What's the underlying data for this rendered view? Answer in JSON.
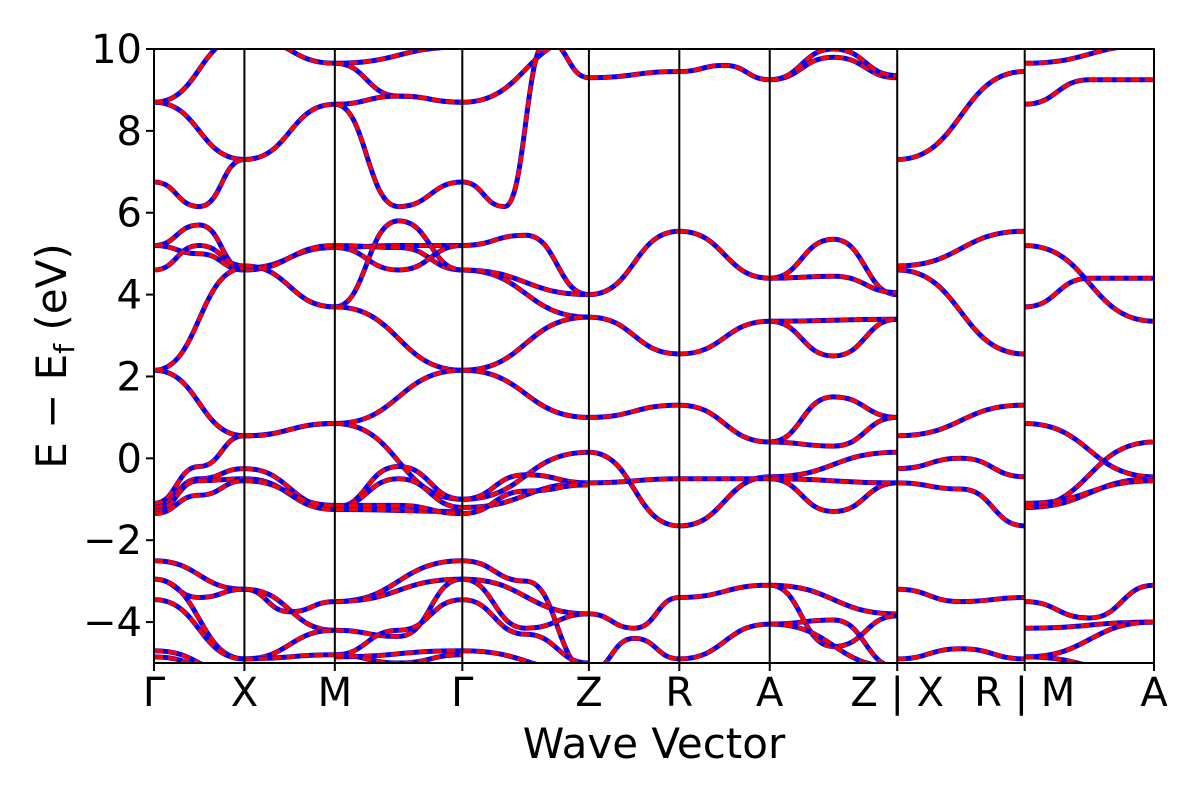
{
  "chart_data": {
    "type": "line",
    "xlabel": "Wave Vector",
    "ylabel": "E − E_f (eV)",
    "ylabel_main": "E − E",
    "ylabel_sub": "f",
    "ylabel_unit": " (eV)",
    "ylim": [
      -5,
      10
    ],
    "yticks": [
      -4,
      -2,
      0,
      2,
      4,
      6,
      8,
      10
    ],
    "ytick_labels": [
      "−4",
      "−2",
      "0",
      "2",
      "4",
      "6",
      "8",
      "10"
    ],
    "xlim": [
      0,
      11.06
    ],
    "grid": false,
    "kpath_ticks": [
      {
        "pos": 0.0,
        "label": "Γ"
      },
      {
        "pos": 1.0,
        "label": "X"
      },
      {
        "pos": 2.0,
        "label": "M"
      },
      {
        "pos": 3.41,
        "label": "Γ"
      },
      {
        "pos": 4.81,
        "label": "Z"
      },
      {
        "pos": 5.81,
        "label": "R"
      },
      {
        "pos": 6.81,
        "label": "A"
      },
      {
        "pos": 8.22,
        "label": "Z | X"
      },
      {
        "pos": 9.63,
        "label": "R | M"
      },
      {
        "pos": 11.06,
        "label": "A"
      }
    ],
    "colors": {
      "primary": "#0000ff",
      "secondary": "#ff0000",
      "kpath_lines": "#000000"
    },
    "segments": [
      {
        "x": [
          0,
          1
        ],
        "bands": [
          [
            8.7,
            7.3
          ],
          [
            8.7,
            10.3
          ],
          [
            6.75,
            6.15,
            7.3
          ],
          [
            5.2,
            5.0,
            4.6
          ],
          [
            5.2,
            5.7,
            4.6
          ],
          [
            4.6,
            5.2,
            4.7
          ],
          [
            2.15,
            0.55
          ],
          [
            2.15,
            4.65
          ],
          [
            -1.1,
            -0.2,
            0.55
          ],
          [
            -1.2,
            -0.5,
            -0.25
          ],
          [
            -1.3,
            -0.55,
            -0.5
          ],
          [
            -1.35,
            -0.9,
            -0.55
          ],
          [
            -2.5,
            -3.2
          ],
          [
            -2.95,
            -3.4,
            -3.2
          ],
          [
            -2.95,
            -4.9
          ],
          [
            -3.45,
            -4.9
          ],
          [
            -4.7,
            -5.3
          ],
          [
            -4.85,
            -5.4
          ]
        ]
      },
      {
        "x": [
          1,
          2
        ],
        "bands": [
          [
            7.3,
            8.65
          ],
          [
            10.3,
            9.65
          ],
          [
            4.65,
            5.15
          ],
          [
            4.6,
            5.2
          ],
          [
            4.7,
            3.7
          ],
          [
            0.55,
            0.85
          ],
          [
            0.55,
            0.85
          ],
          [
            -0.25,
            -1.2
          ],
          [
            -0.5,
            -1.25
          ],
          [
            -0.55,
            -1.15
          ],
          [
            -3.2,
            -3.75,
            -3.5
          ],
          [
            -3.2,
            -4.2
          ],
          [
            -4.9,
            -4.2
          ],
          [
            -4.9,
            -4.8
          ]
        ]
      },
      {
        "x": [
          2,
          3.41
        ],
        "bands": [
          [
            9.65,
            10.05
          ],
          [
            9.65,
            8.85,
            8.7
          ],
          [
            8.65,
            8.85,
            8.7
          ],
          [
            8.65,
            6.15,
            6.75
          ],
          [
            5.15,
            5.2,
            5.2
          ],
          [
            5.2,
            5.15,
            4.6
          ],
          [
            5.15,
            4.6,
            5.2
          ],
          [
            3.7,
            5.8,
            4.6
          ],
          [
            3.7,
            2.15
          ],
          [
            0.85,
            2.15
          ],
          [
            0.85,
            -1.0
          ],
          [
            -1.2,
            -0.2,
            -1.0
          ],
          [
            -1.2,
            -0.5,
            -1.2
          ],
          [
            -1.25,
            -1.3
          ],
          [
            -1.15,
            -1.15,
            -1.35
          ],
          [
            -3.5,
            -2.5
          ],
          [
            -3.5,
            -2.95
          ],
          [
            -4.2,
            -4.35,
            -2.95
          ],
          [
            -4.8,
            -4.2,
            -3.45
          ],
          [
            -4.85,
            -4.7
          ],
          [
            -4.8,
            -5.0,
            -4.8
          ]
        ]
      },
      {
        "x": [
          3.41,
          4.81
        ],
        "bands": [
          [
            8.7,
            10.3
          ],
          [
            6.75,
            6.15,
            10.2,
            9.3
          ],
          [
            5.2,
            5.45,
            4.0
          ],
          [
            4.6,
            3.45
          ],
          [
            4.6,
            4.0
          ],
          [
            2.15,
            3.45
          ],
          [
            2.15,
            1.0
          ],
          [
            -1.0,
            0.15
          ],
          [
            -1.0,
            -0.4,
            -0.6
          ],
          [
            -1.2,
            -0.6
          ],
          [
            -1.35,
            -0.8,
            -0.65
          ],
          [
            -2.5,
            -3.0,
            -5.2
          ],
          [
            -2.95,
            -3.8
          ],
          [
            -2.95,
            -4.15,
            -3.8
          ],
          [
            -3.45,
            -4.3,
            -5.0
          ],
          [
            -4.7,
            -5.2
          ]
        ]
      },
      {
        "x": [
          4.81,
          5.81
        ],
        "bands": [
          [
            9.3,
            9.45
          ],
          [
            4.0,
            5.55
          ],
          [
            3.45,
            2.55
          ],
          [
            1.0,
            1.3
          ],
          [
            0.15,
            -1.65
          ],
          [
            -0.6,
            -0.5
          ],
          [
            -3.8,
            -4.15,
            -3.4
          ],
          [
            -5.2,
            -4.4,
            -4.9
          ]
        ]
      },
      {
        "x": [
          5.81,
          6.81
        ],
        "bands": [
          [
            9.45,
            9.6,
            9.25
          ],
          [
            5.55,
            4.4
          ],
          [
            2.55,
            3.35
          ],
          [
            1.3,
            0.4
          ],
          [
            -1.65,
            -0.45
          ],
          [
            -0.5,
            -0.5
          ],
          [
            -3.4,
            -3.1
          ],
          [
            -4.9,
            -4.05
          ]
        ]
      },
      {
        "x": [
          6.81,
          8.22
        ],
        "bands": [
          [
            9.25,
            9.8,
            9.3
          ],
          [
            9.25,
            10.0,
            9.35
          ],
          [
            4.4,
            5.35,
            4.0
          ],
          [
            4.4,
            4.45,
            4.05
          ],
          [
            3.35,
            3.4
          ],
          [
            3.35,
            2.5,
            3.4
          ],
          [
            0.4,
            1.5,
            1.0
          ],
          [
            0.4,
            0.3,
            1.0
          ],
          [
            -0.45,
            0.15
          ],
          [
            -0.5,
            -1.3,
            -0.6
          ],
          [
            -0.5,
            -0.6
          ],
          [
            -3.1,
            -3.8
          ],
          [
            -3.1,
            -4.6,
            -3.85
          ],
          [
            -4.05,
            -3.95,
            -5.1
          ],
          [
            -4.05,
            -5.1
          ]
        ]
      },
      {
        "x": [
          8.22,
          9.63
        ],
        "bands": [
          [
            7.3,
            9.45
          ],
          [
            4.7,
            5.55
          ],
          [
            4.6,
            2.55
          ],
          [
            0.55,
            1.3
          ],
          [
            -0.25,
            0.0,
            -0.45
          ],
          [
            -0.6,
            -0.75,
            -1.65
          ],
          [
            -3.2,
            -3.5,
            -3.4
          ],
          [
            -4.9,
            -4.65,
            -4.9
          ]
        ]
      },
      {
        "x": [
          9.63,
          11.06
        ],
        "bands": [
          [
            9.65,
            10.1
          ],
          [
            8.65,
            9.25,
            9.25
          ],
          [
            5.2,
            3.35
          ],
          [
            3.7,
            4.4,
            4.4
          ],
          [
            0.85,
            -0.45
          ],
          [
            -1.2,
            0.4
          ],
          [
            -1.2,
            -0.5
          ],
          [
            -1.1,
            -0.55
          ],
          [
            -3.5,
            -3.9,
            -3.1
          ],
          [
            -4.15,
            -4.0
          ],
          [
            -4.85,
            -4.0
          ],
          [
            -4.85,
            -5.3
          ]
        ]
      }
    ]
  }
}
